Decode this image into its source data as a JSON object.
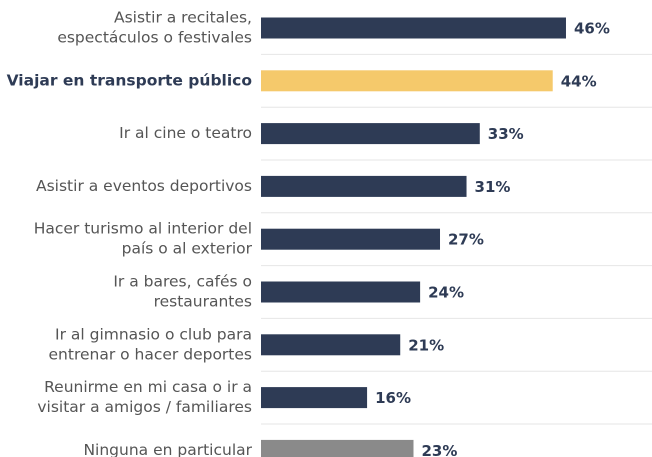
{
  "chart_data": {
    "type": "bar",
    "orientation": "horizontal",
    "categories": [
      [
        "Asistir a recitales,",
        "espectáculos o festivales"
      ],
      [
        "Viajar en transporte público"
      ],
      [
        "Ir al cine o teatro"
      ],
      [
        "Asistir a eventos deportivos"
      ],
      [
        "Hacer turismo al interior del",
        "país o al exterior"
      ],
      [
        "Ir a bares, cafés o",
        "restaurantes"
      ],
      [
        "Ir al gimnasio o club para",
        "entrenar o hacer deportes"
      ],
      [
        "Reunirme en mi casa o ir a",
        "visitar a amigos / familiares"
      ],
      [
        "Ninguna en particular"
      ]
    ],
    "values": [
      46,
      44,
      33,
      31,
      27,
      24,
      21,
      16,
      23
    ],
    "value_labels": [
      "46%",
      "44%",
      "33%",
      "31%",
      "27%",
      "24%",
      "21%",
      "16%",
      "23%"
    ],
    "colors": [
      "#2e3b55",
      "#f5c96b",
      "#2e3b55",
      "#2e3b55",
      "#2e3b55",
      "#2e3b55",
      "#2e3b55",
      "#2e3b55",
      "#8a8a8a"
    ],
    "highlight": 1
  }
}
